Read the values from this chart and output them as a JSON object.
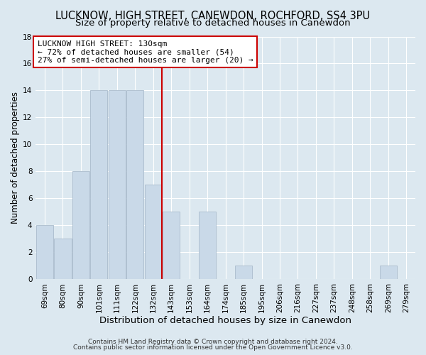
{
  "title": "LUCKNOW, HIGH STREET, CANEWDON, ROCHFORD, SS4 3PU",
  "subtitle": "Size of property relative to detached houses in Canewdon",
  "xlabel": "Distribution of detached houses by size in Canewdon",
  "ylabel": "Number of detached properties",
  "bar_labels": [
    "69sqm",
    "80sqm",
    "90sqm",
    "101sqm",
    "111sqm",
    "122sqm",
    "132sqm",
    "143sqm",
    "153sqm",
    "164sqm",
    "174sqm",
    "185sqm",
    "195sqm",
    "206sqm",
    "216sqm",
    "227sqm",
    "237sqm",
    "248sqm",
    "258sqm",
    "269sqm",
    "279sqm"
  ],
  "bar_values": [
    4,
    3,
    8,
    14,
    14,
    14,
    7,
    5,
    0,
    5,
    0,
    1,
    0,
    0,
    0,
    0,
    0,
    0,
    0,
    1,
    0
  ],
  "bar_color": "#c9d9e8",
  "bar_edge_color": "#aabccc",
  "vline_x_index": 6,
  "vline_color": "#cc0000",
  "annotation_line1": "LUCKNOW HIGH STREET: 130sqm",
  "annotation_line2": "← 72% of detached houses are smaller (54)",
  "annotation_line3": "27% of semi-detached houses are larger (20) →",
  "annotation_box_color": "white",
  "annotation_box_edge_color": "#cc0000",
  "ylim": [
    0,
    18
  ],
  "yticks": [
    0,
    2,
    4,
    6,
    8,
    10,
    12,
    14,
    16,
    18
  ],
  "background_color": "#dce8f0",
  "plot_background_color": "#dce8f0",
  "footer_line1": "Contains HM Land Registry data © Crown copyright and database right 2024.",
  "footer_line2": "Contains public sector information licensed under the Open Government Licence v3.0.",
  "title_fontsize": 10.5,
  "subtitle_fontsize": 9.5,
  "xlabel_fontsize": 9.5,
  "ylabel_fontsize": 8.5,
  "tick_fontsize": 7.5,
  "annotation_fontsize": 8,
  "footer_fontsize": 6.5
}
